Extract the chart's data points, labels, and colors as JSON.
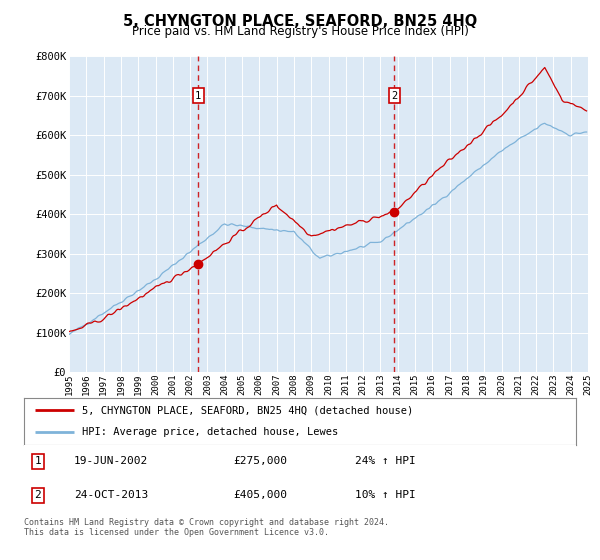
{
  "title": "5, CHYNGTON PLACE, SEAFORD, BN25 4HQ",
  "subtitle": "Price paid vs. HM Land Registry's House Price Index (HPI)",
  "background_color": "#ffffff",
  "plot_bg_color": "#dce9f5",
  "ylim": [
    0,
    800000
  ],
  "yticks": [
    0,
    100000,
    200000,
    300000,
    400000,
    500000,
    600000,
    700000,
    800000
  ],
  "ytick_labels": [
    "£0",
    "£100K",
    "£200K",
    "£300K",
    "£400K",
    "£500K",
    "£600K",
    "£700K",
    "£800K"
  ],
  "sale1_date": 2002.47,
  "sale1_price": 275000,
  "sale1_label": "19-JUN-2002",
  "sale1_amount": "£275,000",
  "sale1_hpi": "24% ↑ HPI",
  "sale2_date": 2013.81,
  "sale2_price": 405000,
  "sale2_label": "24-OCT-2013",
  "sale2_amount": "£405,000",
  "sale2_hpi": "10% ↑ HPI",
  "red_line_color": "#cc0000",
  "blue_line_color": "#7fb3d9",
  "legend_label_red": "5, CHYNGTON PLACE, SEAFORD, BN25 4HQ (detached house)",
  "legend_label_blue": "HPI: Average price, detached house, Lewes",
  "footer": "Contains HM Land Registry data © Crown copyright and database right 2024.\nThis data is licensed under the Open Government Licence v3.0.",
  "xmin": 1995,
  "xmax": 2025
}
